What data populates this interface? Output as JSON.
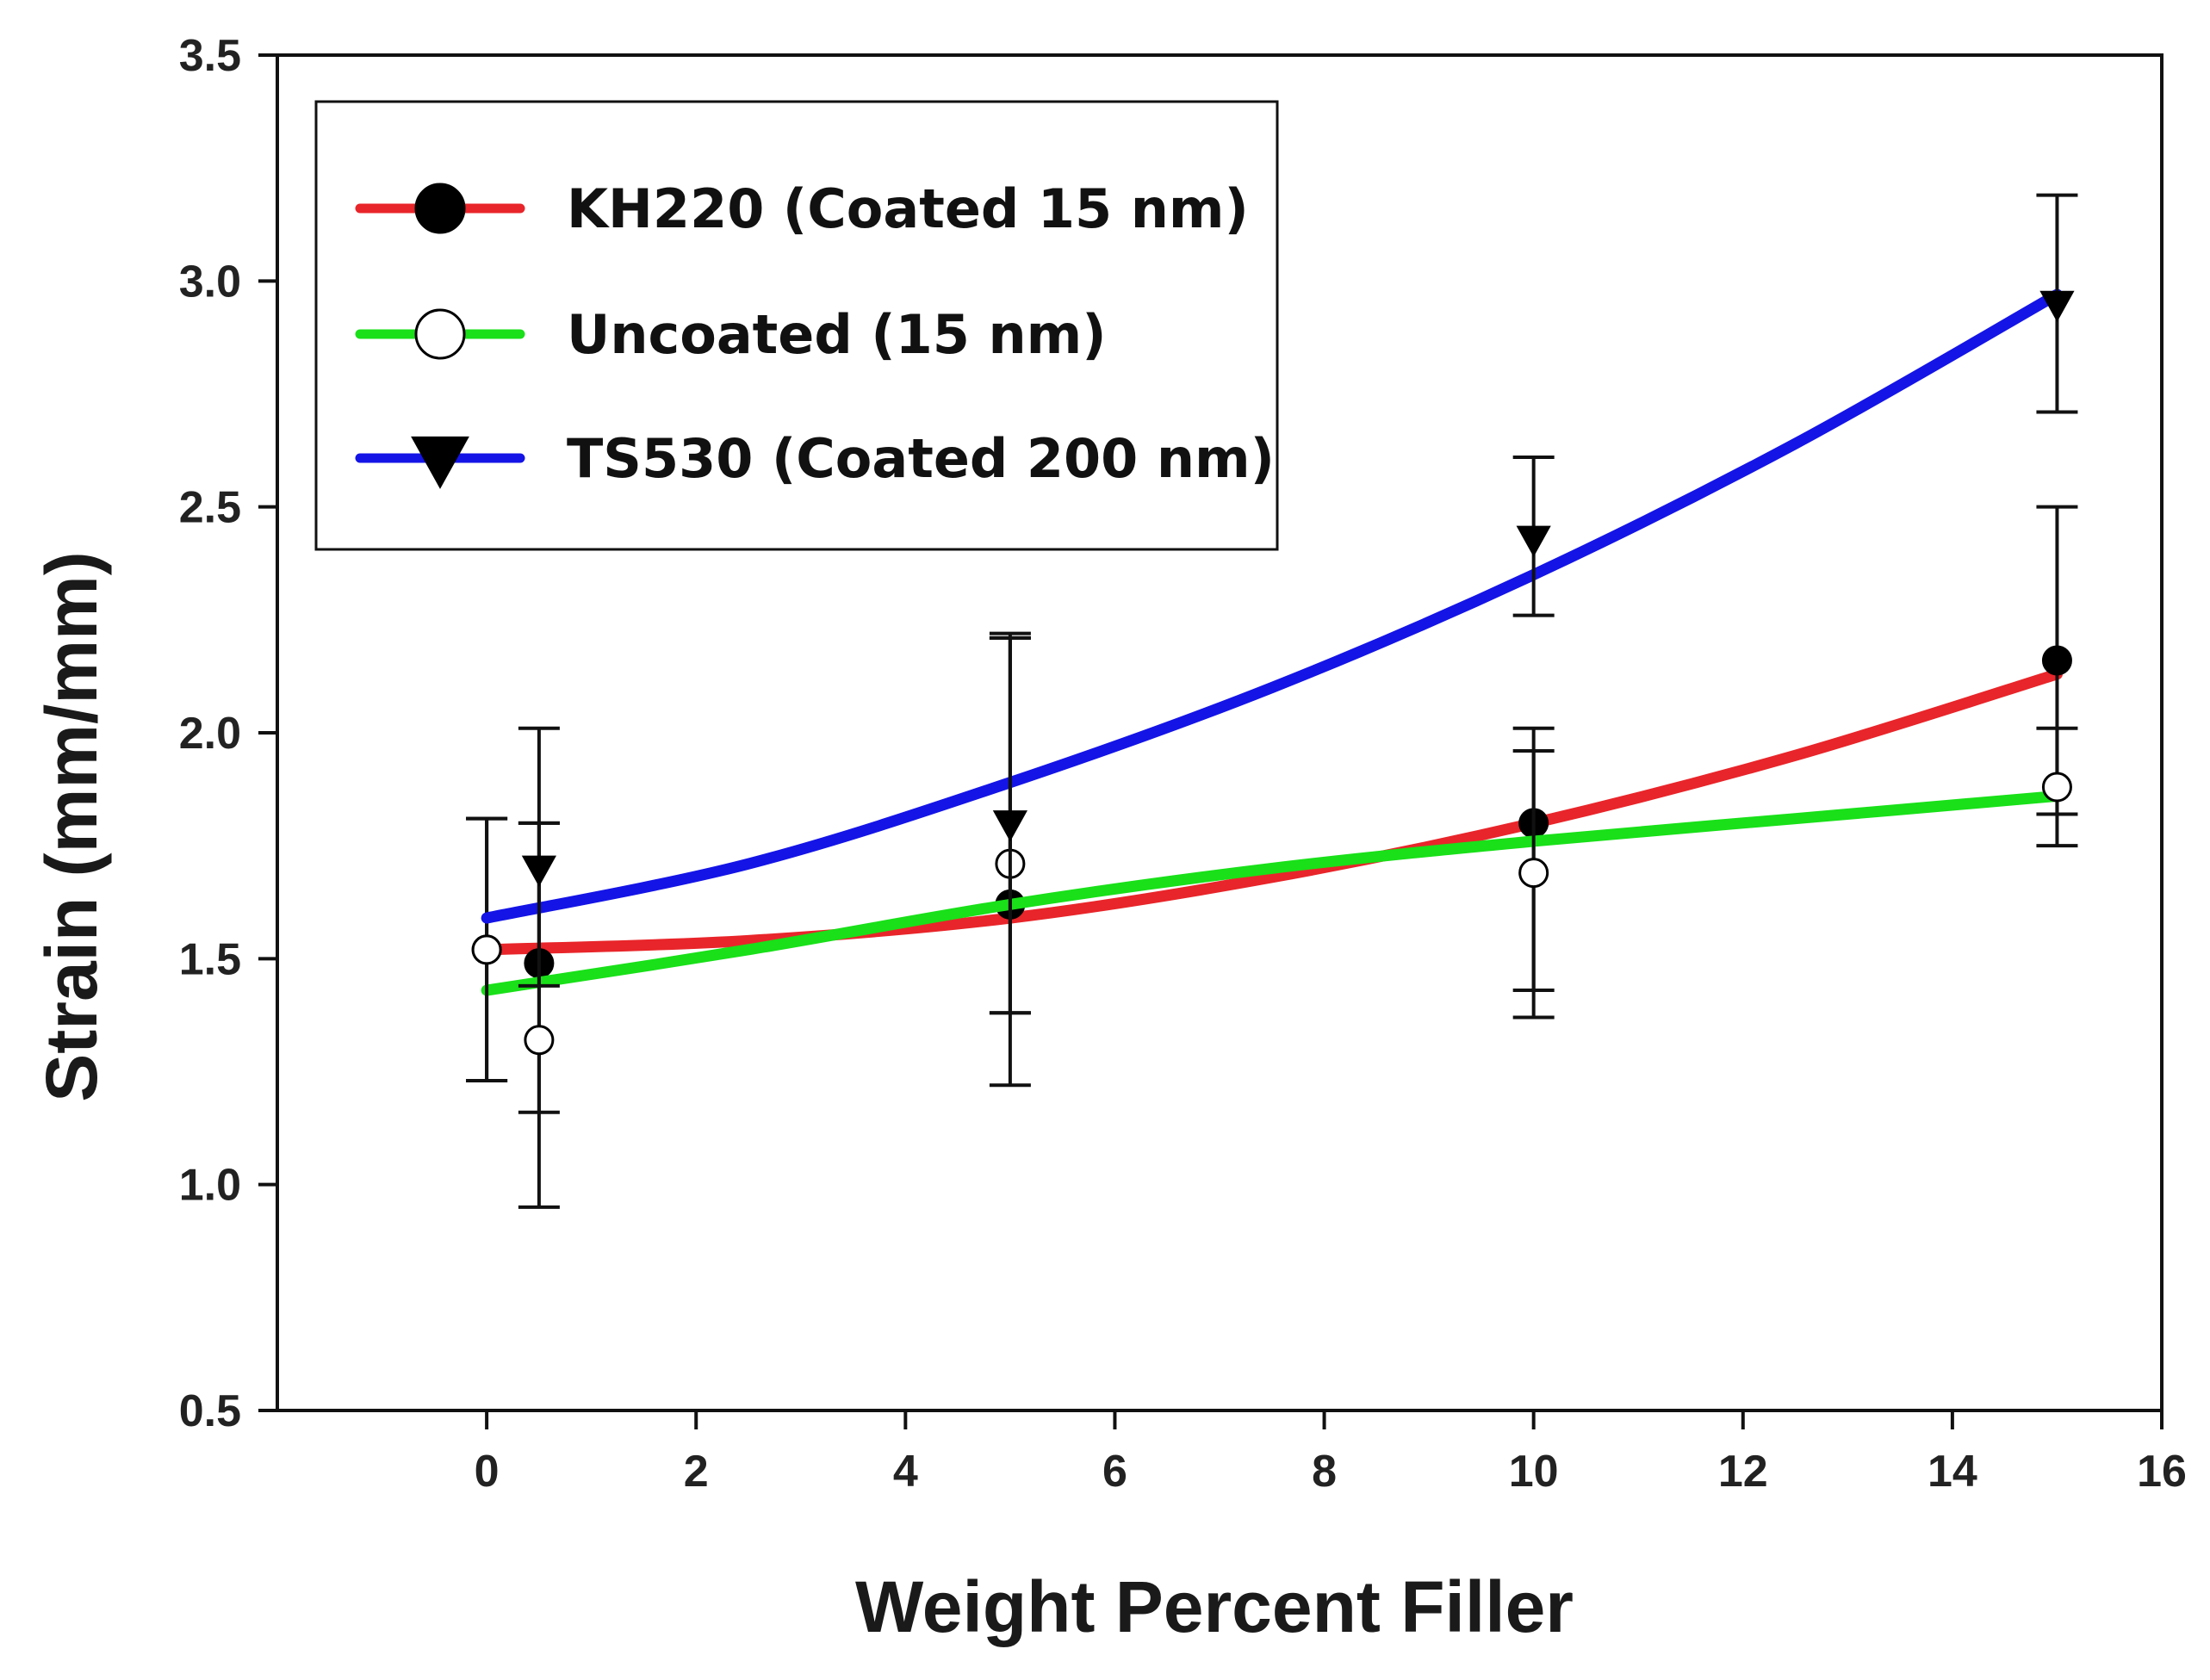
{
  "chart_data": {
    "type": "scatter",
    "title": "",
    "xlabel": "Weight Percent Filler",
    "ylabel": "Strain (mm/mm)",
    "xlim": [
      -2,
      16
    ],
    "ylim": [
      0.5,
      3.5
    ],
    "xticks": [
      0,
      2,
      4,
      6,
      8,
      10,
      12,
      14,
      16
    ],
    "xtick_labels": [
      "0",
      "2",
      "4",
      "6",
      "8",
      "10",
      "12",
      "14",
      "16"
    ],
    "yticks": [
      0.5,
      1.0,
      1.5,
      2.0,
      2.5,
      3.0,
      3.5
    ],
    "ytick_labels": [
      "0.5",
      "1.0",
      "1.5",
      "2.0",
      "2.5",
      "3.0",
      "3.5"
    ],
    "grid": false,
    "legend_position": "top-left",
    "series": [
      {
        "name": "KH220 (Coated 15 nm)",
        "marker": "filled-circle",
        "line_color": "#e8252a",
        "x": [
          0,
          0.5,
          5,
          10,
          15
        ],
        "y": [
          1.52,
          1.49,
          1.62,
          1.8,
          2.16
        ],
        "err_low": [
          1.23,
          1.16,
          1.38,
          1.43,
          1.82
        ],
        "err_high": [
          1.81,
          1.8,
          2.21,
          1.96,
          2.5
        ],
        "fit_x": [
          0,
          2.5,
          5,
          7.5,
          10,
          12.5,
          15
        ],
        "fit_y": [
          1.52,
          1.54,
          1.59,
          1.68,
          1.8,
          1.95,
          2.13
        ]
      },
      {
        "name": "Uncoated (15 nm)",
        "marker": "open-circle",
        "line_color": "#19e019",
        "x": [
          0,
          0.5,
          5,
          10,
          15
        ],
        "y": [
          1.52,
          1.32,
          1.71,
          1.69,
          1.88
        ],
        "err_low": [
          1.23,
          0.95,
          1.22,
          1.37,
          1.75
        ],
        "err_high": [
          1.81,
          1.8,
          2.22,
          2.01,
          2.01
        ],
        "fit_x": [
          0,
          2.5,
          5,
          7.5,
          10,
          12.5,
          15
        ],
        "fit_y": [
          1.43,
          1.52,
          1.62,
          1.7,
          1.76,
          1.81,
          1.86
        ]
      },
      {
        "name": "TS530 (Coated 200 nm)",
        "marker": "filled-triangle-down",
        "line_color": "#1414e6",
        "x": [
          0.5,
          5,
          10,
          15
        ],
        "y": [
          1.7,
          1.8,
          2.43,
          2.95
        ],
        "err_low": [
          1.44,
          1.38,
          2.26,
          2.71
        ],
        "err_high": [
          2.01,
          2.21,
          2.61,
          3.19
        ],
        "fit_x": [
          0,
          2.5,
          5,
          7.5,
          10,
          12.5,
          15
        ],
        "fit_y": [
          1.59,
          1.71,
          1.89,
          2.1,
          2.35,
          2.64,
          2.97
        ]
      }
    ]
  }
}
